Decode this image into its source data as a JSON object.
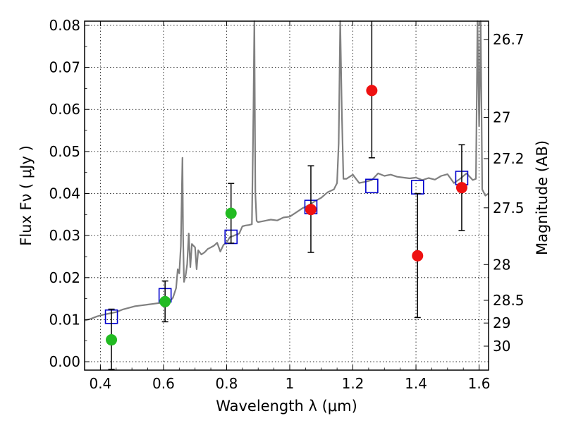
{
  "chart_data": {
    "type": "scatter",
    "title": "",
    "xlabel": "Wavelength  λ (μm)",
    "ylabel": "Flux  Fν  ( μJy )",
    "y2label": "Magnitude (AB)",
    "xlim": [
      0.35,
      1.63
    ],
    "ylim": [
      -0.002,
      0.081
    ],
    "x_ticks": [
      0.4,
      0.6,
      0.8,
      1.0,
      1.2,
      1.4,
      1.6
    ],
    "x_tick_labels": [
      "0.4",
      "0.6",
      "0.8",
      "1",
      "1.2",
      "1.4",
      "1.6"
    ],
    "y_ticks": [
      0.0,
      0.01,
      0.02,
      0.03,
      0.04,
      0.05,
      0.06,
      0.07,
      0.08
    ],
    "y_tick_labels": [
      "0.00",
      "0.01",
      "0.02",
      "0.03",
      "0.04",
      "0.05",
      "0.06",
      "0.07",
      "0.08"
    ],
    "y2_ticks": [
      {
        "label": "26.7",
        "flux": 0.0766
      },
      {
        "label": "27",
        "flux": 0.0581
      },
      {
        "label": "27.2",
        "flux": 0.0483
      },
      {
        "label": "27.5",
        "flux": 0.0366
      },
      {
        "label": "28",
        "flux": 0.0231
      },
      {
        "label": "28.5",
        "flux": 0.0146
      },
      {
        "label": "29",
        "flux": 0.0092
      },
      {
        "label": "30",
        "flux": 0.0037
      }
    ],
    "grid": true,
    "colors": {
      "spectrum": "#808080",
      "model": "#0000cc",
      "green": "#22bb22",
      "red": "#ee1111"
    },
    "spectrum": {
      "x": [
        0.35,
        0.37,
        0.39,
        0.41,
        0.43,
        0.45,
        0.47,
        0.49,
        0.51,
        0.53,
        0.55,
        0.57,
        0.59,
        0.61,
        0.62,
        0.63,
        0.64,
        0.645,
        0.65,
        0.655,
        0.66,
        0.662,
        0.665,
        0.67,
        0.675,
        0.68,
        0.685,
        0.69,
        0.7,
        0.705,
        0.71,
        0.72,
        0.73,
        0.74,
        0.75,
        0.76,
        0.77,
        0.78,
        0.79,
        0.8,
        0.81,
        0.82,
        0.83,
        0.84,
        0.85,
        0.86,
        0.87,
        0.88,
        0.885,
        0.888,
        0.891,
        0.895,
        0.9,
        0.92,
        0.94,
        0.96,
        0.98,
        1.0,
        1.02,
        1.04,
        1.06,
        1.08,
        1.1,
        1.12,
        1.14,
        1.15,
        1.155,
        1.16,
        1.165,
        1.17,
        1.18,
        1.2,
        1.22,
        1.24,
        1.26,
        1.28,
        1.3,
        1.32,
        1.34,
        1.36,
        1.38,
        1.4,
        1.42,
        1.44,
        1.46,
        1.48,
        1.5,
        1.52,
        1.54,
        1.56,
        1.58,
        1.59,
        1.595,
        1.6,
        1.605,
        1.61,
        1.62,
        1.63
      ],
      "y": [
        0.0098,
        0.0102,
        0.0108,
        0.0112,
        0.0115,
        0.0118,
        0.0124,
        0.0128,
        0.0132,
        0.0134,
        0.0136,
        0.0138,
        0.014,
        0.0143,
        0.0144,
        0.0152,
        0.0175,
        0.022,
        0.021,
        0.0275,
        0.0485,
        0.03,
        0.019,
        0.0205,
        0.0232,
        0.0305,
        0.0225,
        0.028,
        0.0272,
        0.022,
        0.0265,
        0.0255,
        0.026,
        0.0268,
        0.0272,
        0.0276,
        0.0283,
        0.0262,
        0.0278,
        0.0283,
        0.0296,
        0.0299,
        0.0302,
        0.0305,
        0.0322,
        0.0324,
        0.0325,
        0.0327,
        0.06,
        0.082,
        0.04,
        0.0335,
        0.0332,
        0.0335,
        0.0338,
        0.0336,
        0.0343,
        0.0345,
        0.0355,
        0.0365,
        0.0372,
        0.0382,
        0.039,
        0.0403,
        0.041,
        0.0425,
        0.052,
        0.082,
        0.06,
        0.0435,
        0.0435,
        0.0445,
        0.0425,
        0.0428,
        0.0432,
        0.0448,
        0.0442,
        0.0445,
        0.044,
        0.0438,
        0.0436,
        0.0438,
        0.0432,
        0.0437,
        0.0433,
        0.0442,
        0.0446,
        0.0425,
        0.0435,
        0.0448,
        0.0432,
        0.0435,
        0.082,
        0.056,
        0.082,
        0.041,
        0.0395,
        0.04
      ]
    },
    "series": [
      {
        "kind": "model",
        "points": [
          {
            "x": 0.435,
            "y": 0.0107
          },
          {
            "x": 0.605,
            "y": 0.0158
          },
          {
            "x": 0.814,
            "y": 0.0297
          },
          {
            "x": 1.067,
            "y": 0.0368
          },
          {
            "x": 1.26,
            "y": 0.0418
          },
          {
            "x": 1.405,
            "y": 0.0415
          },
          {
            "x": 1.545,
            "y": 0.0437
          }
        ]
      },
      {
        "kind": "green",
        "points": [
          {
            "x": 0.435,
            "y": 0.0052,
            "lo": -0.0018,
            "hi": 0.0125
          },
          {
            "x": 0.605,
            "y": 0.0143,
            "lo": 0.0095,
            "hi": 0.0192
          },
          {
            "x": 0.814,
            "y": 0.0353,
            "lo": 0.0282,
            "hi": 0.0424
          }
        ]
      },
      {
        "kind": "red",
        "points": [
          {
            "x": 1.067,
            "y": 0.0362,
            "lo": 0.026,
            "hi": 0.0466
          },
          {
            "x": 1.26,
            "y": 0.0645,
            "lo": 0.0485,
            "hi": 0.081
          },
          {
            "x": 1.405,
            "y": 0.0252,
            "lo": 0.0105,
            "hi": 0.04
          },
          {
            "x": 1.545,
            "y": 0.0414,
            "lo": 0.0312,
            "hi": 0.0516
          }
        ]
      }
    ]
  }
}
